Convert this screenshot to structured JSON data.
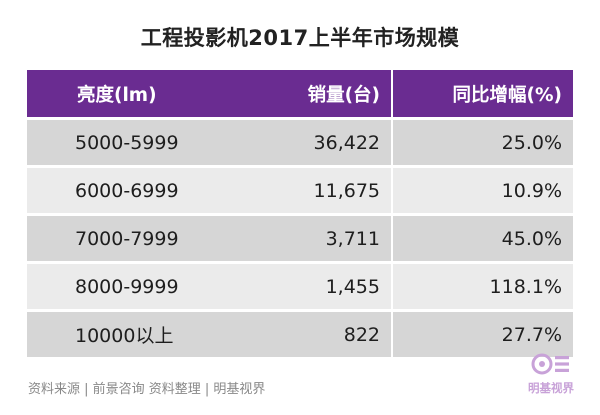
{
  "chart_data": {
    "type": "table",
    "title": "工程投影机2017上半年市场规模",
    "columns": [
      "亮度(lm)",
      "销量(台)",
      "同比增幅(%)"
    ],
    "rows": [
      [
        "5000-5999",
        "36,422",
        "25.0%"
      ],
      [
        "6000-6999",
        "11,675",
        "10.9%"
      ],
      [
        "7000-7999",
        "3,711",
        "45.0%"
      ],
      [
        "8000-9999",
        "1,455",
        "118.1%"
      ],
      [
        "10000以上",
        "822",
        "27.7%"
      ]
    ],
    "colors": {
      "header": "#6a2c91",
      "row_odd": "#d6d6d6",
      "row_even": "#ebebeb",
      "logo": "#c8a2d8"
    }
  },
  "source": "资料来源 | 前景咨询   资料整理 | 明基视界",
  "logo": {
    "icon": "benq-view-logo-icon",
    "text": "明基视界"
  }
}
